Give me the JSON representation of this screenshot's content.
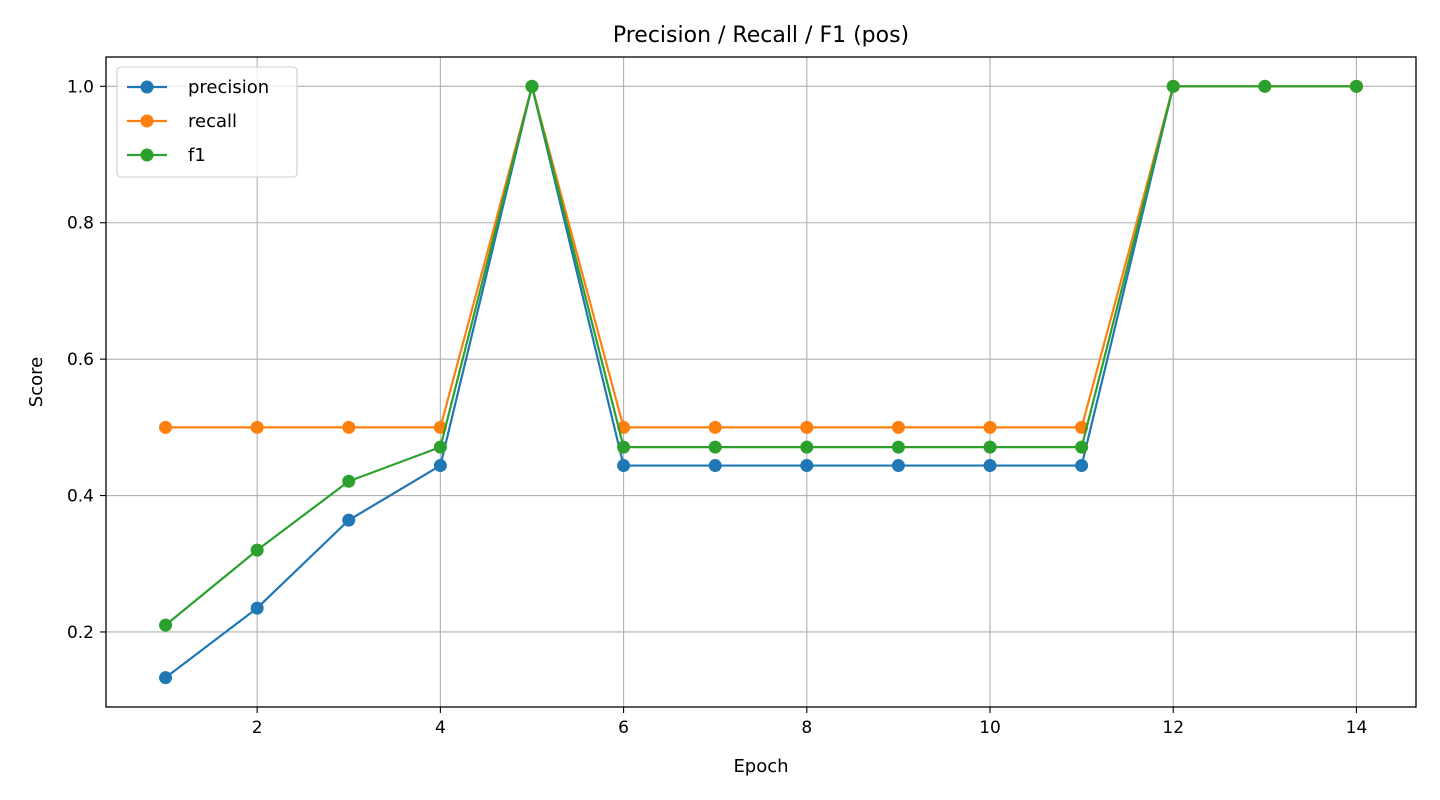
{
  "chart_data": {
    "type": "line",
    "title": "Precision / Recall / F1 (pos)",
    "xlabel": "Epoch",
    "ylabel": "Score",
    "xlim": [
      0.35,
      14.65
    ],
    "ylim": [
      0.09,
      1.043
    ],
    "xticks": [
      2,
      4,
      6,
      8,
      10,
      12,
      14
    ],
    "yticks": [
      0.2,
      0.4,
      0.6,
      0.8,
      1.0
    ],
    "ytick_labels": [
      "0.2",
      "0.4",
      "0.6",
      "0.8",
      "1.0"
    ],
    "grid": true,
    "legend_position": "top-left",
    "x": [
      1,
      2,
      3,
      4,
      5,
      6,
      7,
      8,
      9,
      10,
      11,
      12,
      13,
      14
    ],
    "series": [
      {
        "name": "precision",
        "color": "#1f77b4",
        "values": [
          0.133,
          0.235,
          0.364,
          0.444,
          1.0,
          0.444,
          0.444,
          0.444,
          0.444,
          0.444,
          0.444,
          1.0,
          1.0,
          1.0
        ]
      },
      {
        "name": "recall",
        "color": "#ff7f0e",
        "values": [
          0.5,
          0.5,
          0.5,
          0.5,
          1.0,
          0.5,
          0.5,
          0.5,
          0.5,
          0.5,
          0.5,
          1.0,
          1.0,
          1.0
        ]
      },
      {
        "name": "f1",
        "color": "#2ca02c",
        "values": [
          0.21,
          0.32,
          0.421,
          0.471,
          1.0,
          0.471,
          0.471,
          0.471,
          0.471,
          0.471,
          0.471,
          1.0,
          1.0,
          1.0
        ]
      }
    ]
  }
}
